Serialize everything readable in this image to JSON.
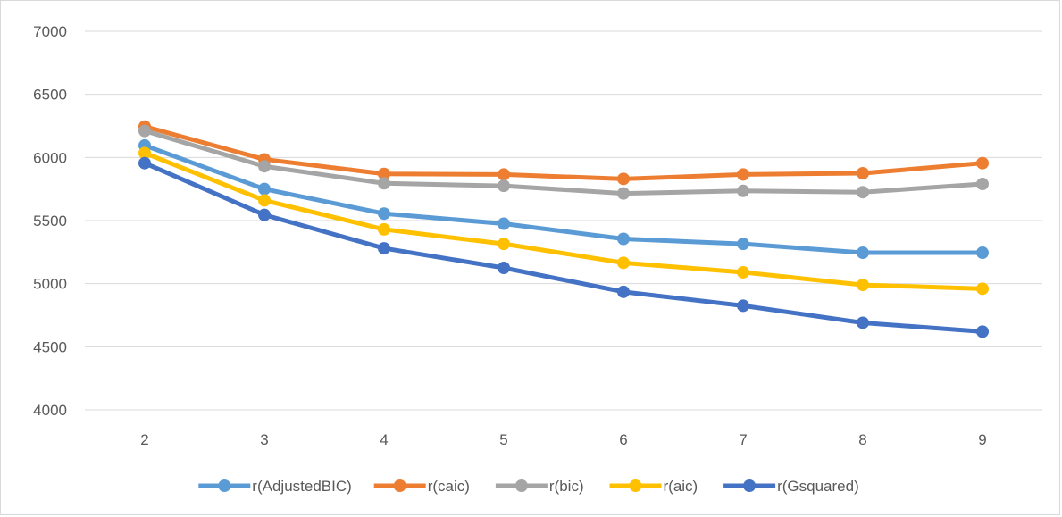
{
  "chart_data": {
    "type": "line",
    "title": "",
    "xlabel": "",
    "ylabel": "",
    "categories": [
      "2",
      "3",
      "4",
      "5",
      "6",
      "7",
      "8",
      "9"
    ],
    "ylim": [
      4000,
      7000
    ],
    "yticks": [
      4000,
      4500,
      5000,
      5500,
      6000,
      6500,
      7000
    ],
    "grid": true,
    "legend_position": "bottom",
    "series": [
      {
        "name": "r(AdjustedBIC)",
        "color": "#5b9bd5",
        "values": [
          6095,
          5750,
          5555,
          5475,
          5355,
          5315,
          5245,
          5245
        ]
      },
      {
        "name": "r(caic)",
        "color": "#ed7d31",
        "values": [
          6245,
          5985,
          5870,
          5865,
          5830,
          5865,
          5875,
          5955
        ]
      },
      {
        "name": "r(bic)",
        "color": "#a5a5a5",
        "values": [
          6210,
          5930,
          5795,
          5775,
          5715,
          5735,
          5725,
          5790
        ]
      },
      {
        "name": "r(aic)",
        "color": "#ffc000",
        "values": [
          6035,
          5660,
          5430,
          5315,
          5165,
          5090,
          4990,
          4960
        ]
      },
      {
        "name": "r(Gsquared)",
        "color": "#4472c4",
        "values": [
          5955,
          5545,
          5280,
          5125,
          4935,
          4825,
          4690,
          4620
        ]
      }
    ]
  }
}
